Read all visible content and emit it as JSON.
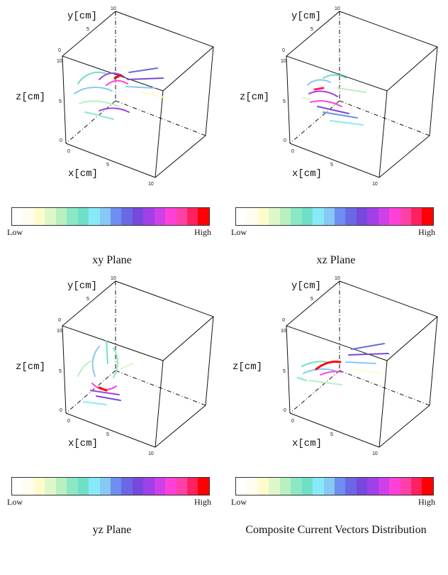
{
  "axis": {
    "x": "x[cm]",
    "y": "y[cm]",
    "z": "z[cm]",
    "tick_0": "0",
    "tick_5": "5",
    "tick_10": "10"
  },
  "colorbar": {
    "low": "Low",
    "high": "High",
    "colors": [
      "#ffffff",
      "#fffdf0",
      "#fffccc",
      "#ddf8c8",
      "#b8f0c0",
      "#8ae8c4",
      "#6ee0c8",
      "#88eaf8",
      "#88c8f4",
      "#6e8ef0",
      "#6a68e4",
      "#7848dc",
      "#a040e8",
      "#d040e8",
      "#ff40d8",
      "#ff40a8",
      "#ff2060",
      "#ff0000"
    ]
  },
  "panels": [
    {
      "caption": "xy Plane"
    },
    {
      "caption": "xz Plane"
    },
    {
      "caption": "yz Plane"
    },
    {
      "caption": "Composite Current Vectors Distribution"
    }
  ]
}
